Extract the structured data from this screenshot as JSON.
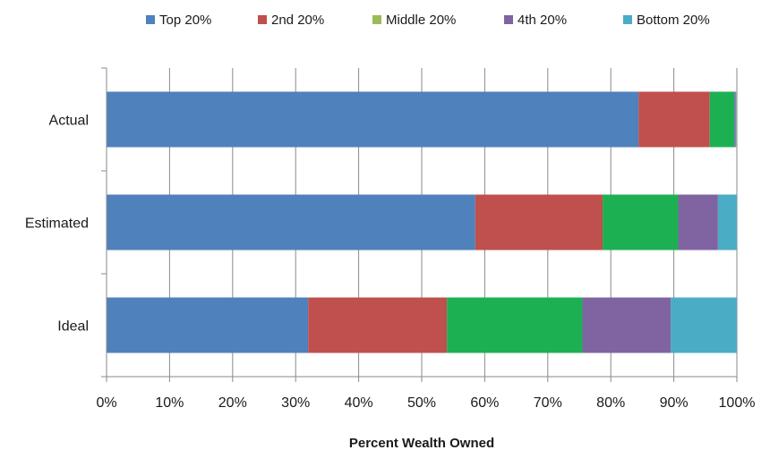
{
  "chart_data": {
    "type": "bar",
    "orientation": "horizontal",
    "stacked": true,
    "title": "",
    "xlabel": "Percent Wealth Owned",
    "ylabel": "",
    "xlim": [
      0,
      100
    ],
    "x_ticks": [
      "0%",
      "10%",
      "20%",
      "30%",
      "40%",
      "50%",
      "60%",
      "70%",
      "80%",
      "90%",
      "100%"
    ],
    "grid": true,
    "legend_position": "top",
    "categories": [
      "Actual",
      "Estimated",
      "Ideal"
    ],
    "series": [
      {
        "name": "Top 20%",
        "color": "#4F81BD",
        "values": [
          84.4,
          58.5,
          32.0
        ]
      },
      {
        "name": "2nd 20%",
        "color": "#C0504D",
        "values": [
          11.3,
          20.2,
          22.0
        ]
      },
      {
        "name": "Middle 20%",
        "color": "#1DB052",
        "values": [
          3.9,
          12.0,
          21.5
        ]
      },
      {
        "name": "4th 20%",
        "color": "#8064A2",
        "values": [
          0.2,
          6.3,
          14.0
        ]
      },
      {
        "name": "Bottom 20%",
        "color": "#4BACC6",
        "values": [
          0.1,
          3.0,
          10.5
        ]
      }
    ],
    "legend_colors_note": "",
    "legend_swatch_colors": [
      "#4F81BD",
      "#C0504D",
      "#9BBB59",
      "#8064A2",
      "#4BACC6"
    ]
  }
}
